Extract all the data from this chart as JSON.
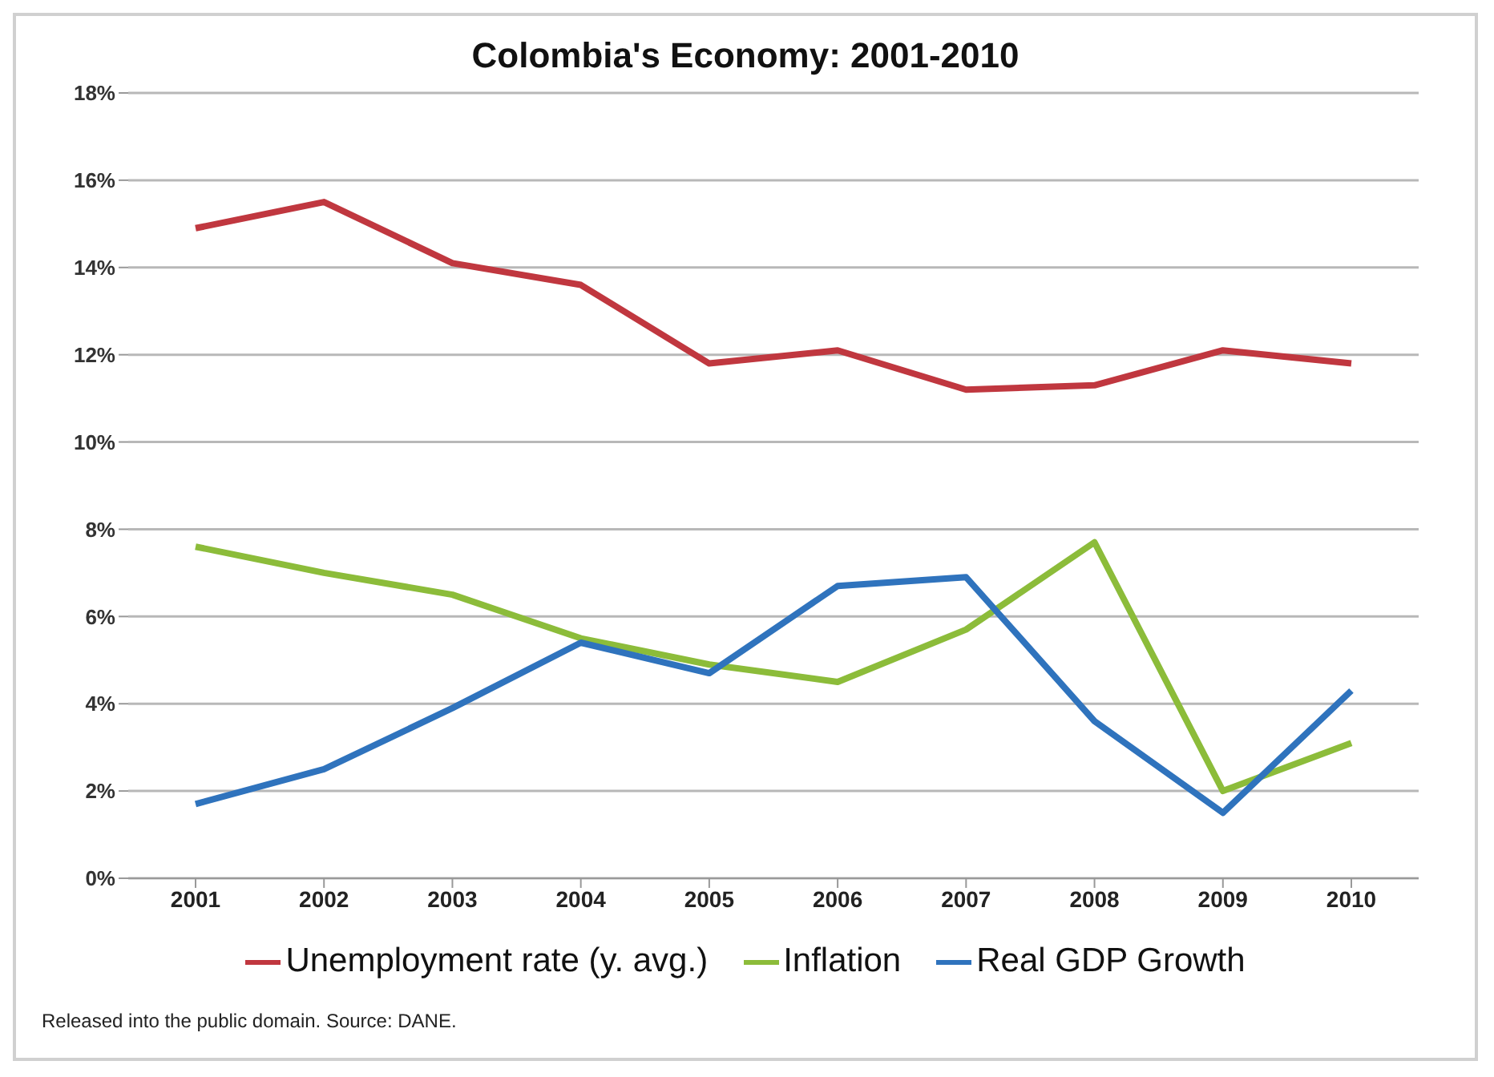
{
  "chart_data": {
    "type": "line",
    "title": "Colombia's Economy: 2001-2010",
    "categories": [
      "2001",
      "2002",
      "2003",
      "2004",
      "2005",
      "2006",
      "2007",
      "2008",
      "2009",
      "2010"
    ],
    "series": [
      {
        "name": "Unemployment rate (y. avg.)",
        "color": "#c0373f",
        "values": [
          14.9,
          15.5,
          14.1,
          13.6,
          11.8,
          12.1,
          11.2,
          11.3,
          12.1,
          11.8
        ]
      },
      {
        "name": "Inflation",
        "color": "#8cbc3a",
        "values": [
          7.6,
          7.0,
          6.5,
          5.5,
          4.9,
          4.5,
          5.7,
          7.7,
          2.0,
          3.1
        ]
      },
      {
        "name": "Real GDP Growth",
        "color": "#2f73bd",
        "values": [
          1.7,
          2.5,
          3.9,
          5.4,
          4.7,
          6.7,
          6.9,
          3.6,
          1.5,
          4.3
        ]
      }
    ],
    "ylim": [
      0,
      18
    ],
    "yticks": [
      {
        "value": 0,
        "label": "0%"
      },
      {
        "value": 2,
        "label": "2%"
      },
      {
        "value": 4,
        "label": "4%"
      },
      {
        "value": 6,
        "label": "6%"
      },
      {
        "value": 8,
        "label": "8%"
      },
      {
        "value": 10,
        "label": "10%"
      },
      {
        "value": 12,
        "label": "12%"
      },
      {
        "value": 14,
        "label": "14%"
      },
      {
        "value": 16,
        "label": "16%"
      },
      {
        "value": 18,
        "label": "18%"
      }
    ],
    "grid": "y",
    "legend": "bottom",
    "marker": "none",
    "line_style": "solid",
    "annotations": [
      "Released into the public domain. Source: DANE."
    ]
  }
}
